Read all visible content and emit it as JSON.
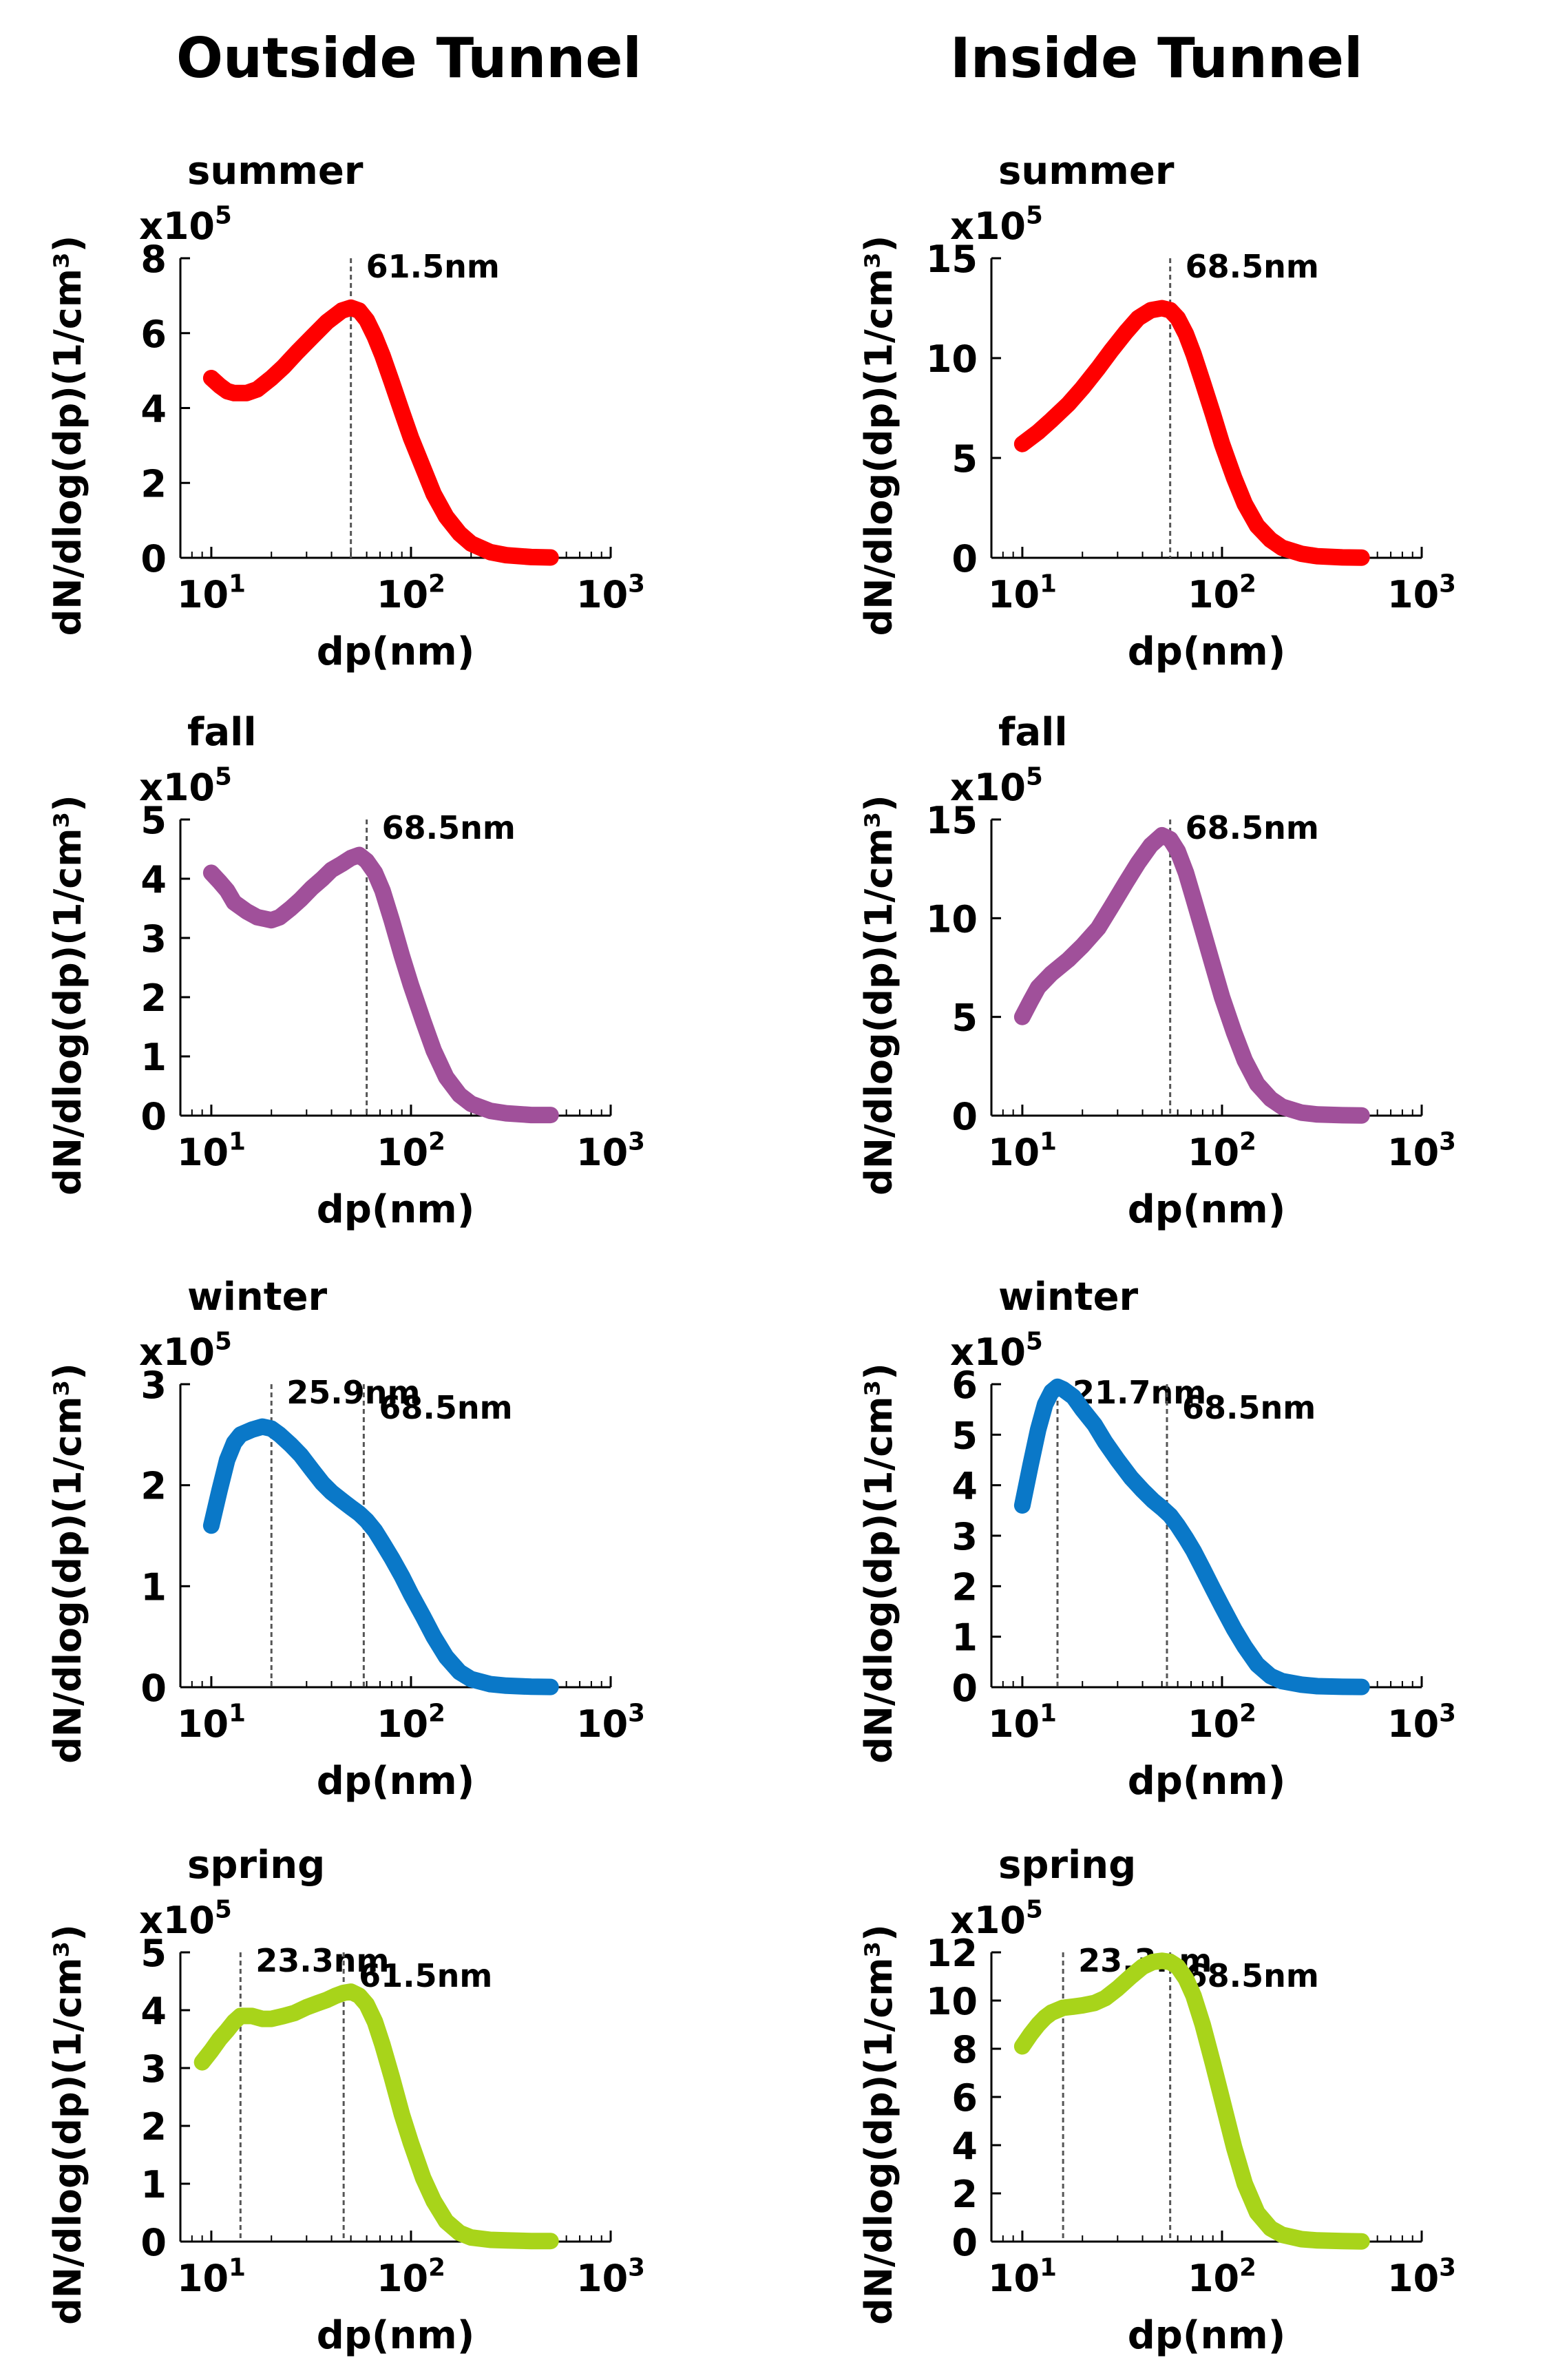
{
  "columns": [
    {
      "title": "Outside Tunnel"
    },
    {
      "title": "Inside Tunnel"
    }
  ],
  "colors": {
    "summer": "#ff0000",
    "fall": "#a0509a",
    "winter": "#0a78c8",
    "spring": "#a8d41a",
    "marker": "#555555"
  },
  "chart_data": [
    {
      "type": "line",
      "column": "Outside Tunnel",
      "title": "summer",
      "xlabel": "dp(nm)",
      "ylabel": "dN/dlog(dp)(1/cm³)",
      "x_scale": "log",
      "xlim": [
        7,
        1000
      ],
      "x_ticks": [
        10,
        100,
        1000
      ],
      "x_tick_labels": [
        {
          "base": "10",
          "exp": "1"
        },
        {
          "base": "10",
          "exp": "2"
        },
        {
          "base": "10",
          "exp": "3"
        }
      ],
      "y_multiplier": {
        "base": "x10",
        "exp": "5"
      },
      "ylim": [
        0,
        8
      ],
      "y_ticks": [
        0,
        2,
        4,
        6,
        8
      ],
      "series": [
        {
          "color_key": "summer",
          "x": [
            10,
            11,
            12,
            13,
            15,
            17,
            20,
            23,
            27,
            32,
            38,
            45,
            50,
            55,
            60,
            66,
            72,
            80,
            90,
            100,
            115,
            130,
            150,
            175,
            200,
            250,
            300,
            400,
            500
          ],
          "y": [
            4.8,
            4.6,
            4.45,
            4.4,
            4.4,
            4.5,
            4.8,
            5.1,
            5.5,
            5.9,
            6.3,
            6.6,
            6.68,
            6.6,
            6.35,
            5.9,
            5.4,
            4.7,
            3.9,
            3.2,
            2.4,
            1.7,
            1.1,
            0.65,
            0.38,
            0.15,
            0.07,
            0.02,
            0.01
          ]
        }
      ],
      "markers": [
        {
          "x": 50,
          "label": "61.5nm"
        }
      ]
    },
    {
      "type": "line",
      "column": "Inside Tunnel",
      "title": "summer",
      "xlabel": "dp(nm)",
      "ylabel": "dN/dlog(dp)(1/cm³)",
      "x_scale": "log",
      "xlim": [
        7,
        1000
      ],
      "x_ticks": [
        10,
        100,
        1000
      ],
      "x_tick_labels": [
        {
          "base": "10",
          "exp": "1"
        },
        {
          "base": "10",
          "exp": "2"
        },
        {
          "base": "10",
          "exp": "3"
        }
      ],
      "y_multiplier": {
        "base": "x10",
        "exp": "5"
      },
      "ylim": [
        0,
        15
      ],
      "y_ticks": [
        0,
        5,
        10,
        15
      ],
      "series": [
        {
          "color_key": "summer",
          "x": [
            10,
            12,
            14,
            17,
            20,
            24,
            28,
            33,
            38,
            44,
            50,
            55,
            60,
            66,
            72,
            80,
            90,
            100,
            115,
            130,
            150,
            175,
            200,
            250,
            300,
            400,
            500
          ],
          "y": [
            5.7,
            6.3,
            6.9,
            7.7,
            8.5,
            9.5,
            10.4,
            11.3,
            12.0,
            12.4,
            12.5,
            12.4,
            12.0,
            11.2,
            10.2,
            8.8,
            7.2,
            5.7,
            4.0,
            2.7,
            1.6,
            0.9,
            0.5,
            0.2,
            0.08,
            0.02,
            0.01
          ]
        }
      ],
      "markers": [
        {
          "x": 55,
          "label": "68.5nm"
        }
      ]
    },
    {
      "type": "line",
      "column": "Outside Tunnel",
      "title": "fall",
      "xlabel": "dp(nm)",
      "ylabel": "dN/dlog(dp)(1/cm³)",
      "x_scale": "log",
      "xlim": [
        7,
        1000
      ],
      "x_ticks": [
        10,
        100,
        1000
      ],
      "x_tick_labels": [
        {
          "base": "10",
          "exp": "1"
        },
        {
          "base": "10",
          "exp": "2"
        },
        {
          "base": "10",
          "exp": "3"
        }
      ],
      "y_multiplier": {
        "base": "x10",
        "exp": "5"
      },
      "ylim": [
        0,
        5
      ],
      "y_ticks": [
        0,
        1,
        2,
        3,
        4,
        5
      ],
      "series": [
        {
          "color_key": "fall",
          "x": [
            10,
            11,
            12,
            13,
            15,
            17,
            20,
            22,
            25,
            28,
            32,
            36,
            40,
            45,
            50,
            55,
            60,
            66,
            72,
            80,
            90,
            100,
            115,
            130,
            150,
            175,
            200,
            250,
            300,
            400,
            500
          ],
          "y": [
            4.1,
            3.95,
            3.8,
            3.6,
            3.45,
            3.35,
            3.3,
            3.35,
            3.5,
            3.65,
            3.85,
            4.0,
            4.15,
            4.25,
            4.35,
            4.4,
            4.3,
            4.1,
            3.8,
            3.3,
            2.7,
            2.2,
            1.6,
            1.1,
            0.65,
            0.35,
            0.2,
            0.08,
            0.04,
            0.01,
            0.01
          ]
        }
      ],
      "markers": [
        {
          "x": 60,
          "label": "68.5nm"
        }
      ]
    },
    {
      "type": "line",
      "column": "Inside Tunnel",
      "title": "fall",
      "xlabel": "dp(nm)",
      "ylabel": "dN/dlog(dp)(1/cm³)",
      "x_scale": "log",
      "xlim": [
        7,
        1000
      ],
      "x_ticks": [
        10,
        100,
        1000
      ],
      "x_tick_labels": [
        {
          "base": "10",
          "exp": "1"
        },
        {
          "base": "10",
          "exp": "2"
        },
        {
          "base": "10",
          "exp": "3"
        }
      ],
      "y_multiplier": {
        "base": "x10",
        "exp": "5"
      },
      "ylim": [
        0,
        15
      ],
      "y_ticks": [
        0,
        5,
        10,
        15
      ],
      "series": [
        {
          "color_key": "fall",
          "x": [
            10,
            11,
            12,
            14,
            17,
            20,
            24,
            28,
            33,
            38,
            44,
            50,
            55,
            60,
            66,
            72,
            80,
            90,
            100,
            115,
            130,
            150,
            175,
            200,
            250,
            300,
            400,
            500
          ],
          "y": [
            5.0,
            5.8,
            6.5,
            7.2,
            7.9,
            8.6,
            9.5,
            10.6,
            11.8,
            12.8,
            13.7,
            14.2,
            14.0,
            13.4,
            12.3,
            11.0,
            9.4,
            7.6,
            6.0,
            4.2,
            2.8,
            1.6,
            0.85,
            0.45,
            0.15,
            0.06,
            0.02,
            0.01
          ]
        }
      ],
      "markers": [
        {
          "x": 55,
          "label": "68.5nm"
        }
      ]
    },
    {
      "type": "line",
      "column": "Outside Tunnel",
      "title": "winter",
      "xlabel": "dp(nm)",
      "ylabel": "dN/dlog(dp)(1/cm³)",
      "x_scale": "log",
      "xlim": [
        7,
        1000
      ],
      "x_ticks": [
        10,
        100,
        1000
      ],
      "x_tick_labels": [
        {
          "base": "10",
          "exp": "1"
        },
        {
          "base": "10",
          "exp": "2"
        },
        {
          "base": "10",
          "exp": "3"
        }
      ],
      "y_multiplier": {
        "base": "x10",
        "exp": "5"
      },
      "ylim": [
        0,
        3
      ],
      "y_ticks": [
        0,
        1,
        2,
        3
      ],
      "series": [
        {
          "color_key": "winter",
          "x": [
            10,
            11,
            12,
            13,
            14,
            16,
            18,
            20,
            22,
            25,
            28,
            32,
            36,
            40,
            45,
            50,
            55,
            60,
            66,
            72,
            80,
            90,
            100,
            115,
            130,
            150,
            175,
            200,
            250,
            300,
            400,
            500
          ],
          "y": [
            1.6,
            1.95,
            2.25,
            2.42,
            2.5,
            2.55,
            2.58,
            2.56,
            2.5,
            2.4,
            2.3,
            2.15,
            2.02,
            1.93,
            1.85,
            1.78,
            1.72,
            1.65,
            1.55,
            1.43,
            1.28,
            1.1,
            0.92,
            0.7,
            0.5,
            0.3,
            0.15,
            0.08,
            0.03,
            0.015,
            0.005,
            0.003
          ]
        }
      ],
      "markers": [
        {
          "x": 20,
          "label": "25.9nm"
        },
        {
          "x": 58,
          "label": "68.5nm"
        }
      ]
    },
    {
      "type": "line",
      "column": "Inside Tunnel",
      "title": "winter",
      "xlabel": "dp(nm)",
      "ylabel": "dN/dlog(dp)(1/cm³)",
      "x_scale": "log",
      "xlim": [
        7,
        1000
      ],
      "x_ticks": [
        10,
        100,
        1000
      ],
      "x_tick_labels": [
        {
          "base": "10",
          "exp": "1"
        },
        {
          "base": "10",
          "exp": "2"
        },
        {
          "base": "10",
          "exp": "3"
        }
      ],
      "y_multiplier": {
        "base": "x10",
        "exp": "5"
      },
      "ylim": [
        0,
        6
      ],
      "y_ticks": [
        0,
        1,
        2,
        3,
        4,
        5,
        6
      ],
      "series": [
        {
          "color_key": "winter",
          "x": [
            10,
            11,
            12,
            13,
            14,
            15,
            16,
            18,
            20,
            23,
            26,
            30,
            35,
            40,
            45,
            50,
            55,
            60,
            66,
            72,
            80,
            90,
            100,
            115,
            130,
            150,
            175,
            200,
            250,
            300,
            400,
            500
          ],
          "y": [
            3.6,
            4.4,
            5.1,
            5.6,
            5.85,
            5.95,
            5.9,
            5.75,
            5.5,
            5.2,
            4.85,
            4.5,
            4.15,
            3.9,
            3.7,
            3.55,
            3.4,
            3.2,
            2.95,
            2.7,
            2.35,
            1.95,
            1.6,
            1.15,
            0.8,
            0.45,
            0.22,
            0.12,
            0.05,
            0.02,
            0.008,
            0.005
          ]
        }
      ],
      "markers": [
        {
          "x": 15,
          "label": "21.7nm"
        },
        {
          "x": 53,
          "label": "68.5nm"
        }
      ]
    },
    {
      "type": "line",
      "column": "Outside Tunnel",
      "title": "spring",
      "xlabel": "dp(nm)",
      "ylabel": "dN/dlog(dp)(1/cm³)",
      "x_scale": "log",
      "xlim": [
        7,
        1000
      ],
      "x_ticks": [
        10,
        100,
        1000
      ],
      "x_tick_labels": [
        {
          "base": "10",
          "exp": "1"
        },
        {
          "base": "10",
          "exp": "2"
        },
        {
          "base": "10",
          "exp": "3"
        }
      ],
      "y_multiplier": {
        "base": "x10",
        "exp": "5"
      },
      "ylim": [
        0,
        5
      ],
      "y_ticks": [
        0,
        1,
        2,
        3,
        4,
        5
      ],
      "series": [
        {
          "color_key": "spring",
          "x": [
            9,
            10,
            11,
            12,
            13,
            14,
            16,
            18,
            20,
            23,
            26,
            30,
            34,
            38,
            42,
            46,
            50,
            55,
            60,
            66,
            72,
            80,
            90,
            100,
            115,
            130,
            150,
            175,
            200,
            250,
            300,
            400,
            500
          ],
          "y": [
            3.1,
            3.3,
            3.5,
            3.65,
            3.8,
            3.9,
            3.9,
            3.85,
            3.85,
            3.9,
            3.95,
            4.05,
            4.12,
            4.18,
            4.25,
            4.3,
            4.32,
            4.25,
            4.1,
            3.8,
            3.4,
            2.85,
            2.2,
            1.7,
            1.1,
            0.7,
            0.35,
            0.15,
            0.07,
            0.03,
            0.02,
            0.01,
            0.01
          ]
        }
      ],
      "markers": [
        {
          "x": 14,
          "label": "23.3nm"
        },
        {
          "x": 46,
          "label": "61.5nm"
        }
      ]
    },
    {
      "type": "line",
      "column": "Inside Tunnel",
      "title": "spring",
      "xlabel": "dp(nm)",
      "ylabel": "dN/dlog(dp)(1/cm³)",
      "x_scale": "log",
      "xlim": [
        7,
        1000
      ],
      "x_ticks": [
        10,
        100,
        1000
      ],
      "x_tick_labels": [
        {
          "base": "10",
          "exp": "1"
        },
        {
          "base": "10",
          "exp": "2"
        },
        {
          "base": "10",
          "exp": "3"
        }
      ],
      "y_multiplier": {
        "base": "x10",
        "exp": "5"
      },
      "ylim": [
        0,
        12
      ],
      "y_ticks": [
        0,
        2,
        4,
        6,
        8,
        10,
        12
      ],
      "series": [
        {
          "color_key": "spring",
          "x": [
            10,
            11,
            12,
            13,
            14,
            16,
            18,
            20,
            23,
            26,
            30,
            35,
            40,
            45,
            50,
            55,
            60,
            66,
            72,
            80,
            90,
            100,
            115,
            130,
            150,
            175,
            200,
            250,
            300,
            400,
            500
          ],
          "y": [
            8.1,
            8.6,
            9.0,
            9.3,
            9.5,
            9.7,
            9.75,
            9.8,
            9.9,
            10.1,
            10.5,
            11.0,
            11.4,
            11.6,
            11.65,
            11.6,
            11.4,
            10.9,
            10.2,
            9.0,
            7.4,
            5.9,
            3.9,
            2.4,
            1.2,
            0.55,
            0.28,
            0.1,
            0.05,
            0.02,
            0.01
          ]
        }
      ],
      "markers": [
        {
          "x": 16,
          "label": "23.3nm"
        },
        {
          "x": 55,
          "label": "68.5nm"
        }
      ]
    }
  ]
}
